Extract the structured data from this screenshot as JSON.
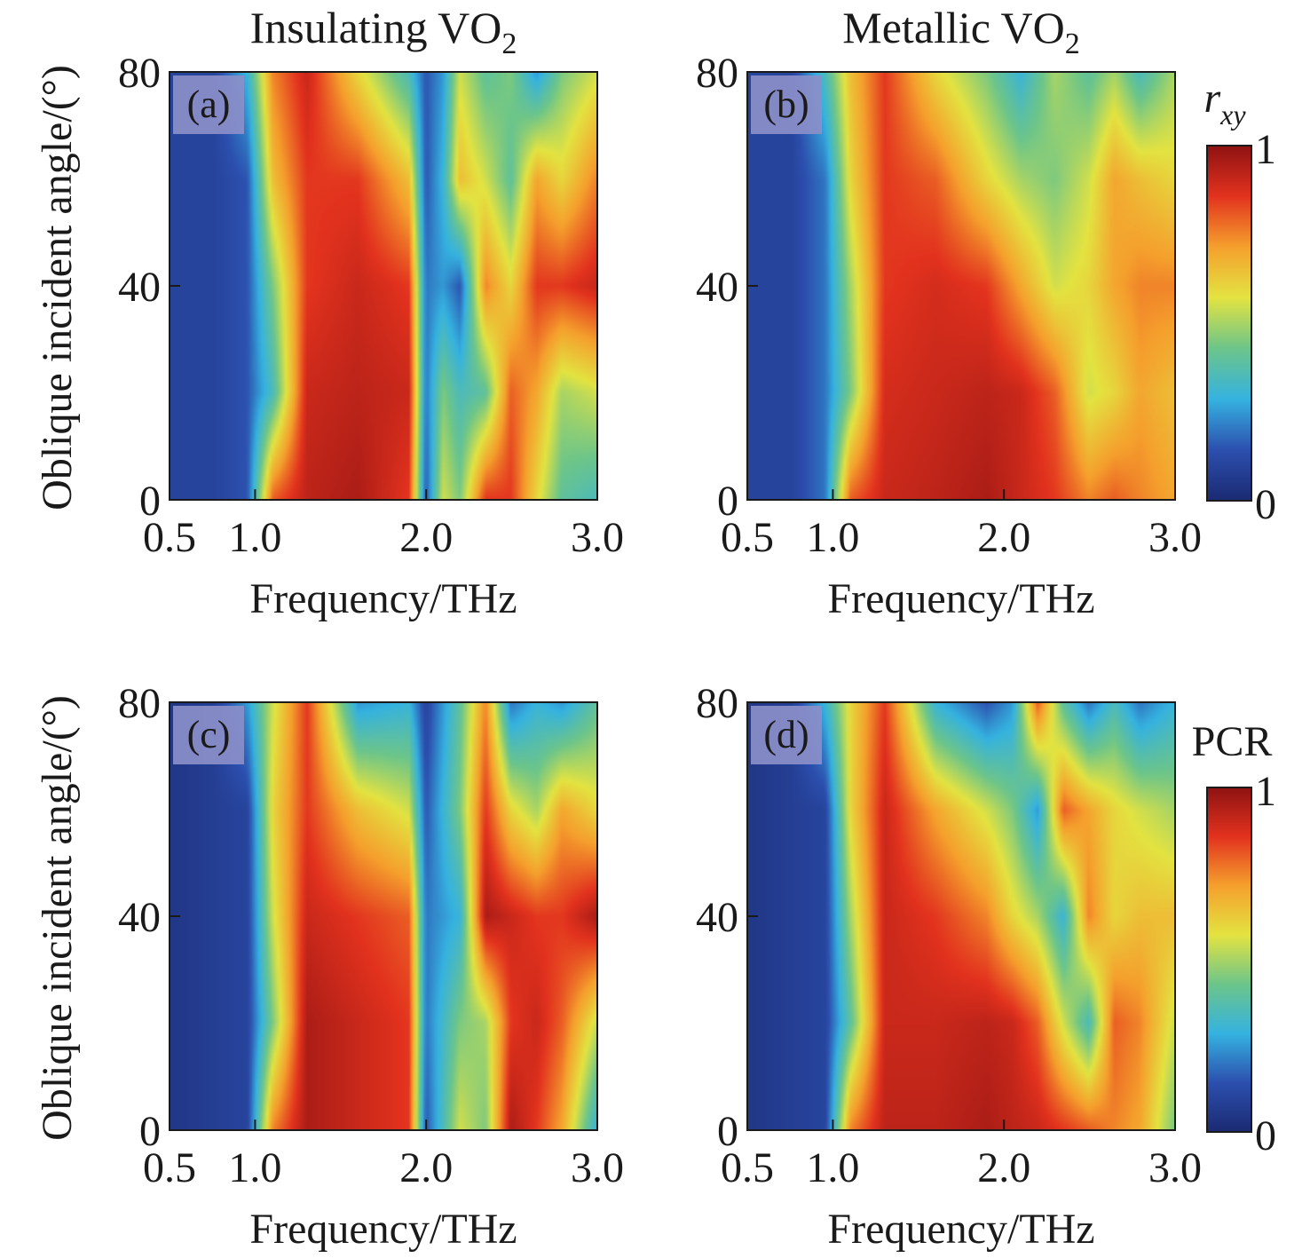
{
  "figure": {
    "columns": [
      {
        "title": "Insulating VO",
        "sub": "2"
      },
      {
        "title": "Metallic VO",
        "sub": "2"
      }
    ],
    "y_axis_label": "Oblique incident angle/(°)",
    "x_axis_label": "Frequency/THz",
    "x_tick_labels": [
      "0.5",
      "1.0",
      "2.0",
      "3.0"
    ],
    "y_tick_labels": [
      "0",
      "40",
      "80"
    ]
  },
  "colorbars": [
    {
      "label_main": "r",
      "label_sub": "xy",
      "max_label": "1",
      "min_label": "0",
      "range": [
        0,
        1
      ]
    },
    {
      "label_main": "PCR",
      "label_sub": "",
      "max_label": "1",
      "min_label": "0",
      "range": [
        0,
        1
      ]
    }
  ],
  "colormap": [
    "#1b2a72",
    "#2c4fae",
    "#35b2e0",
    "#6cc58a",
    "#e3e341",
    "#f5a02d",
    "#e2321e",
    "#8e1212"
  ],
  "chart_data": [
    {
      "type": "heatmap",
      "panel_label": "(a)",
      "row": 0,
      "col": 0,
      "xlabel": "Frequency/THz",
      "ylabel": "Oblique incident angle/(°)",
      "xlim": [
        0.5,
        3.0
      ],
      "ylim": [
        0,
        80
      ],
      "xticks": [
        0.5,
        1.0,
        2.0,
        3.0
      ],
      "yticks": [
        0,
        40,
        80
      ],
      "colorbar": "r_xy",
      "zlim": [
        0,
        1
      ],
      "x": [
        0.5,
        0.75,
        0.95,
        1.1,
        1.3,
        1.6,
        1.9,
        2.0,
        2.1,
        2.2,
        2.35,
        2.5,
        2.65,
        2.8,
        3.0
      ],
      "y": [
        80,
        60,
        40,
        20,
        0
      ],
      "z": [
        [
          0.1,
          0.1,
          0.3,
          0.75,
          0.9,
          0.6,
          0.35,
          0.15,
          0.25,
          0.55,
          0.4,
          0.45,
          0.25,
          0.45,
          0.55
        ],
        [
          0.1,
          0.1,
          0.15,
          0.65,
          0.85,
          0.85,
          0.65,
          0.15,
          0.3,
          0.65,
          0.55,
          0.4,
          0.7,
          0.6,
          0.75
        ],
        [
          0.1,
          0.1,
          0.15,
          0.45,
          0.85,
          0.9,
          0.85,
          0.2,
          0.25,
          0.15,
          0.75,
          0.6,
          0.85,
          0.85,
          0.9
        ],
        [
          0.1,
          0.1,
          0.15,
          0.35,
          0.9,
          0.92,
          0.9,
          0.2,
          0.45,
          0.35,
          0.4,
          0.8,
          0.7,
          0.5,
          0.55
        ],
        [
          0.1,
          0.1,
          0.15,
          0.8,
          0.92,
          0.95,
          0.85,
          0.15,
          0.55,
          0.45,
          0.85,
          0.85,
          0.6,
          0.4,
          0.35
        ]
      ]
    },
    {
      "type": "heatmap",
      "panel_label": "(b)",
      "row": 0,
      "col": 1,
      "xlabel": "Frequency/THz",
      "ylabel": "",
      "xlim": [
        0.5,
        3.0
      ],
      "ylim": [
        0,
        80
      ],
      "xticks": [
        0.5,
        1.0,
        2.0,
        3.0
      ],
      "yticks": [
        0,
        40,
        80
      ],
      "colorbar": "r_xy",
      "zlim": [
        0,
        1
      ],
      "x": [
        0.5,
        0.75,
        0.95,
        1.1,
        1.3,
        1.6,
        1.9,
        2.1,
        2.3,
        2.5,
        2.65,
        2.8,
        3.0
      ],
      "y": [
        80,
        60,
        40,
        20,
        0
      ],
      "z": [
        [
          0.1,
          0.1,
          0.35,
          0.65,
          0.85,
          0.6,
          0.45,
          0.3,
          0.5,
          0.4,
          0.5,
          0.35,
          0.5
        ],
        [
          0.1,
          0.1,
          0.2,
          0.6,
          0.85,
          0.8,
          0.6,
          0.5,
          0.45,
          0.55,
          0.7,
          0.65,
          0.6
        ],
        [
          0.1,
          0.1,
          0.2,
          0.5,
          0.85,
          0.88,
          0.85,
          0.7,
          0.55,
          0.6,
          0.7,
          0.75,
          0.75
        ],
        [
          0.1,
          0.1,
          0.2,
          0.45,
          0.88,
          0.9,
          0.92,
          0.9,
          0.8,
          0.55,
          0.6,
          0.7,
          0.65
        ],
        [
          0.1,
          0.1,
          0.2,
          0.8,
          0.9,
          0.92,
          0.95,
          0.9,
          0.85,
          0.75,
          0.8,
          0.75,
          0.7
        ]
      ]
    },
    {
      "type": "heatmap",
      "panel_label": "(c)",
      "row": 1,
      "col": 0,
      "xlabel": "Frequency/THz",
      "ylabel": "Oblique incident angle/(°)",
      "xlim": [
        0.5,
        3.0
      ],
      "ylim": [
        0,
        80
      ],
      "xticks": [
        0.5,
        1.0,
        2.0,
        3.0
      ],
      "yticks": [
        0,
        40,
        80
      ],
      "colorbar": "PCR",
      "zlim": [
        0,
        1
      ],
      "x": [
        0.5,
        0.75,
        0.95,
        1.1,
        1.3,
        1.6,
        1.9,
        2.0,
        2.2,
        2.35,
        2.5,
        2.65,
        2.8,
        3.0
      ],
      "y": [
        80,
        60,
        40,
        20,
        0
      ],
      "z": [
        [
          0.05,
          0.08,
          0.25,
          0.55,
          0.85,
          0.25,
          0.3,
          0.1,
          0.4,
          0.75,
          0.2,
          0.3,
          0.25,
          0.4
        ],
        [
          0.05,
          0.08,
          0.1,
          0.6,
          0.85,
          0.65,
          0.55,
          0.15,
          0.45,
          0.85,
          0.6,
          0.5,
          0.7,
          0.6
        ],
        [
          0.05,
          0.08,
          0.1,
          0.55,
          0.9,
          0.85,
          0.8,
          0.2,
          0.3,
          0.95,
          0.9,
          0.85,
          0.85,
          0.95
        ],
        [
          0.05,
          0.08,
          0.1,
          0.45,
          0.95,
          0.9,
          0.85,
          0.2,
          0.45,
          0.5,
          0.85,
          0.9,
          0.8,
          0.55
        ],
        [
          0.05,
          0.08,
          0.1,
          0.75,
          0.95,
          0.9,
          0.85,
          0.15,
          0.55,
          0.45,
          0.95,
          0.85,
          0.7,
          0.3
        ]
      ]
    },
    {
      "type": "heatmap",
      "panel_label": "(d)",
      "row": 1,
      "col": 1,
      "xlabel": "Frequency/THz",
      "ylabel": "",
      "xlim": [
        0.5,
        3.0
      ],
      "ylim": [
        0,
        80
      ],
      "xticks": [
        0.5,
        1.0,
        2.0,
        3.0
      ],
      "yticks": [
        0,
        40,
        80
      ],
      "colorbar": "PCR",
      "zlim": [
        0,
        1
      ],
      "x": [
        0.5,
        0.75,
        0.95,
        1.1,
        1.3,
        1.6,
        1.9,
        2.05,
        2.2,
        2.35,
        2.5,
        2.65,
        2.8,
        3.0
      ],
      "y": [
        80,
        60,
        40,
        20,
        0
      ],
      "z": [
        [
          0.05,
          0.08,
          0.3,
          0.6,
          0.85,
          0.3,
          0.15,
          0.25,
          0.8,
          0.4,
          0.2,
          0.35,
          0.2,
          0.3
        ],
        [
          0.05,
          0.08,
          0.1,
          0.6,
          0.9,
          0.7,
          0.55,
          0.45,
          0.25,
          0.8,
          0.7,
          0.6,
          0.55,
          0.5
        ],
        [
          0.05,
          0.08,
          0.1,
          0.5,
          0.9,
          0.85,
          0.75,
          0.6,
          0.5,
          0.3,
          0.75,
          0.6,
          0.65,
          0.65
        ],
        [
          0.05,
          0.08,
          0.1,
          0.4,
          0.9,
          0.9,
          0.92,
          0.9,
          0.8,
          0.55,
          0.35,
          0.8,
          0.75,
          0.55
        ],
        [
          0.05,
          0.08,
          0.1,
          0.75,
          0.92,
          0.92,
          0.95,
          0.92,
          0.9,
          0.85,
          0.8,
          0.75,
          0.7,
          0.45
        ]
      ]
    }
  ]
}
